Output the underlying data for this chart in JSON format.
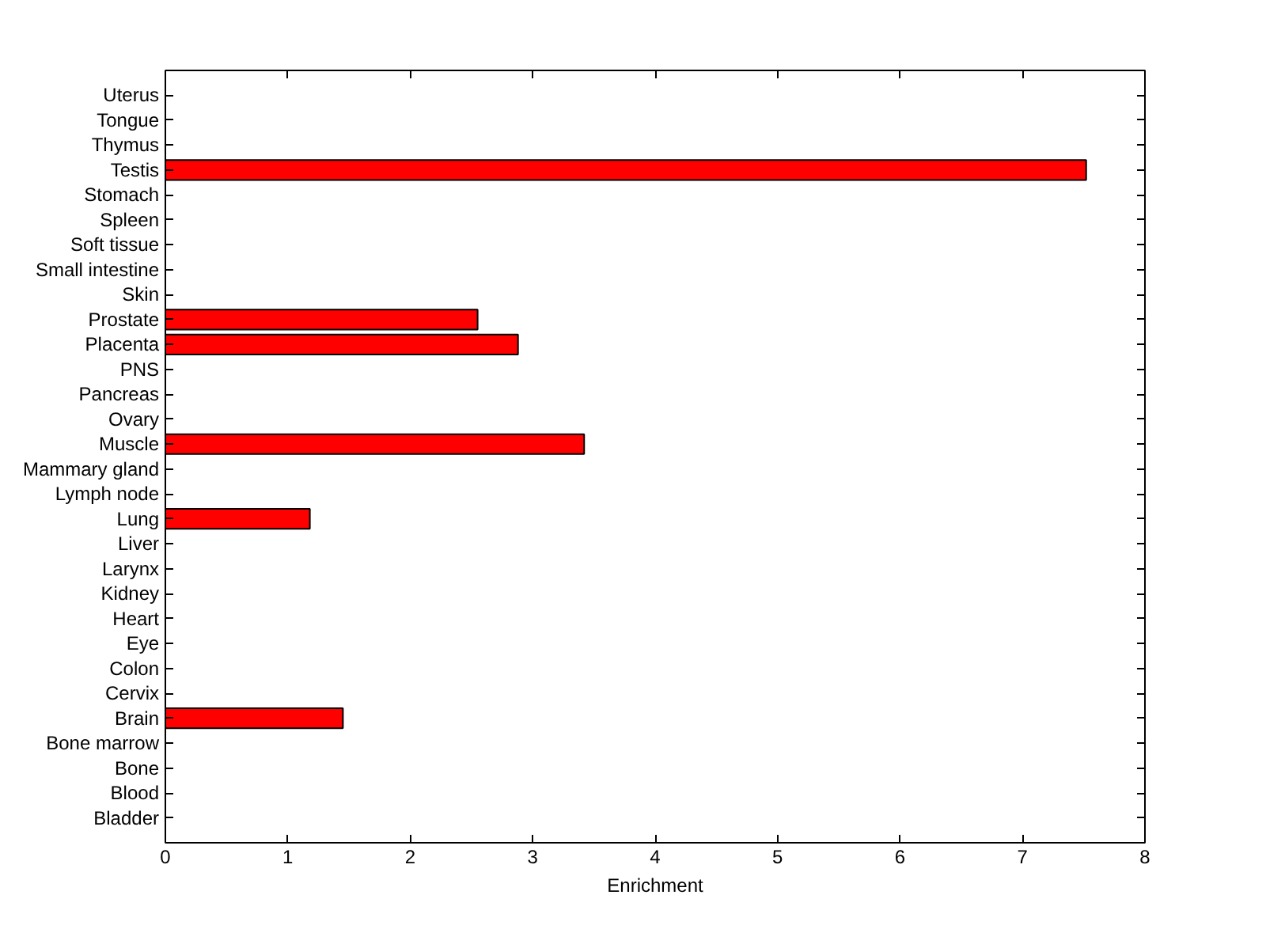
{
  "chart_data": {
    "type": "bar",
    "orientation": "horizontal",
    "categories": [
      "Uterus",
      "Tongue",
      "Thymus",
      "Testis",
      "Stomach",
      "Spleen",
      "Soft tissue",
      "Small intestine",
      "Skin",
      "Prostate",
      "Placenta",
      "PNS",
      "Pancreas",
      "Ovary",
      "Muscle",
      "Mammary gland",
      "Lymph node",
      "Lung",
      "Liver",
      "Larynx",
      "Kidney",
      "Heart",
      "Eye",
      "Colon",
      "Cervix",
      "Brain",
      "Bone marrow",
      "Bone",
      "Blood",
      "Bladder"
    ],
    "values": [
      0,
      0,
      0,
      7.52,
      0,
      0,
      0,
      0,
      0,
      2.55,
      2.88,
      0,
      0,
      0,
      3.42,
      0,
      0,
      1.18,
      0,
      0,
      0,
      0,
      0,
      0,
      0,
      1.45,
      0,
      0,
      0,
      0
    ],
    "color": "#ff0000",
    "xlabel": "Enrichment",
    "xlim": [
      0,
      8
    ],
    "xticks": [
      0,
      1,
      2,
      3,
      4,
      5,
      6,
      7,
      8
    ]
  }
}
